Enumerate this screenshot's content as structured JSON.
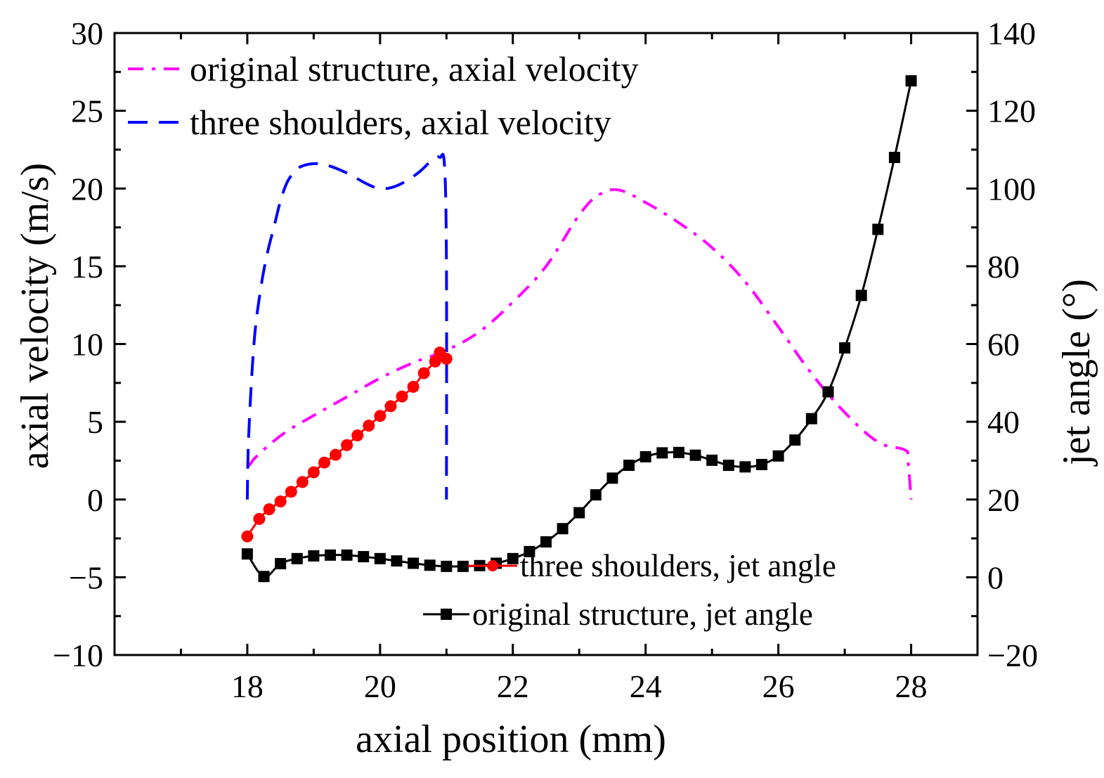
{
  "chart_data": {
    "type": "line",
    "xlabel": "axial position (mm)",
    "ylabel": "axial velocity (m/s)",
    "y2label": "jet angle (°)",
    "xlim": [
      16,
      29
    ],
    "ylim": [
      -10,
      30
    ],
    "y2lim": [
      -20,
      140
    ],
    "xticks": [
      "18",
      "20",
      "22",
      "24",
      "26",
      "28"
    ],
    "xtick_values": [
      18,
      20,
      22,
      24,
      26,
      28
    ],
    "yticks": [
      "−10",
      "−5",
      "0",
      "5",
      "10",
      "15",
      "20",
      "25",
      "30"
    ],
    "ytick_values": [
      -10,
      -5,
      0,
      5,
      10,
      15,
      20,
      25,
      30
    ],
    "y2ticks": [
      "−20",
      "0",
      "20",
      "40",
      "60",
      "80",
      "100",
      "120",
      "140"
    ],
    "y2tick_values": [
      -20,
      0,
      20,
      40,
      60,
      80,
      100,
      120,
      140
    ],
    "series": [
      {
        "name": "original structure, axial velocity",
        "axis": "left",
        "color": "#ff00ff",
        "style": "dashdot",
        "x": [
          18.0,
          18.05,
          18.1,
          18.3,
          18.6,
          19.0,
          19.5,
          20.0,
          20.5,
          21.0,
          21.5,
          22.0,
          22.5,
          23.0,
          23.3,
          23.6,
          24.0,
          24.5,
          25.0,
          25.5,
          26.0,
          26.5,
          27.0,
          27.5,
          27.9,
          27.95,
          28.0
        ],
        "values": [
          2.1,
          2.3,
          2.6,
          3.4,
          4.4,
          5.4,
          6.6,
          7.8,
          8.8,
          9.6,
          10.8,
          12.7,
          15.0,
          18.3,
          19.6,
          19.9,
          19.1,
          17.8,
          16.2,
          14.0,
          11.1,
          8.1,
          5.6,
          3.7,
          3.2,
          2.6,
          0.0
        ]
      },
      {
        "name": "three shoulders, axial velocity",
        "axis": "left",
        "color": "#0000ff",
        "style": "dashed",
        "x": [
          18.0,
          18.02,
          18.1,
          18.2,
          18.3,
          18.4,
          18.5,
          18.6,
          18.7,
          18.8,
          19.0,
          19.2,
          19.5,
          19.8,
          20.0,
          20.2,
          20.4,
          20.6,
          20.8,
          20.9,
          20.97,
          21.0,
          21.0
        ],
        "values": [
          0.0,
          4.0,
          10.0,
          13.5,
          15.8,
          17.5,
          19.2,
          20.4,
          21.0,
          21.4,
          21.6,
          21.5,
          21.0,
          20.3,
          20.0,
          20.1,
          20.5,
          21.1,
          21.9,
          22.0,
          21.5,
          15.0,
          0.0
        ]
      },
      {
        "name": "three shoulders, jet angle",
        "axis": "right",
        "color": "#ff0000",
        "style": "solid",
        "marker": "circle",
        "x": [
          18.0,
          18.18,
          18.33,
          18.5,
          18.66,
          18.83,
          19.0,
          19.16,
          19.33,
          19.5,
          19.66,
          19.83,
          20.0,
          20.16,
          20.33,
          20.5,
          20.66,
          20.83,
          20.9,
          21.0
        ],
        "values": [
          10.5,
          15.0,
          17.5,
          19.5,
          22.0,
          24.5,
          27.0,
          29.5,
          31.5,
          34.0,
          36.5,
          39.0,
          41.5,
          44.0,
          46.5,
          49.0,
          52.5,
          55.5,
          57.8,
          56.2
        ]
      },
      {
        "name": "original structure, jet angle",
        "axis": "right",
        "color": "#000000",
        "style": "solid",
        "marker": "square",
        "x": [
          18.0,
          18.25,
          18.5,
          18.75,
          19.0,
          19.25,
          19.5,
          19.75,
          20.0,
          20.25,
          20.5,
          20.75,
          21.0,
          21.25,
          21.5,
          21.75,
          22.0,
          22.25,
          22.5,
          22.75,
          23.0,
          23.25,
          23.5,
          23.75,
          24.0,
          24.25,
          24.5,
          24.75,
          25.0,
          25.25,
          25.5,
          25.75,
          26.0,
          26.25,
          26.5,
          26.75,
          27.0,
          27.25,
          27.5,
          27.75,
          28.0
        ],
        "values": [
          6.0,
          0.2,
          3.5,
          4.8,
          5.5,
          5.7,
          5.7,
          5.3,
          4.8,
          4.2,
          3.6,
          3.1,
          2.8,
          2.8,
          3.0,
          3.6,
          4.8,
          6.6,
          9.1,
          12.5,
          16.6,
          21.2,
          25.5,
          28.8,
          31.0,
          32.0,
          32.1,
          31.4,
          30.1,
          28.8,
          28.4,
          29.0,
          31.2,
          35.3,
          40.8,
          47.7,
          59.0,
          72.5,
          89.5,
          108.0,
          127.7
        ]
      }
    ],
    "legend": [
      {
        "label": "original structure, axial velocity",
        "position": "top-left"
      },
      {
        "label": "three shoulders, axial velocity",
        "position": "top-left"
      },
      {
        "label": "three shoulders, jet angle",
        "position": "bottom-right"
      },
      {
        "label": "original structure, jet angle",
        "position": "bottom-right"
      }
    ]
  }
}
